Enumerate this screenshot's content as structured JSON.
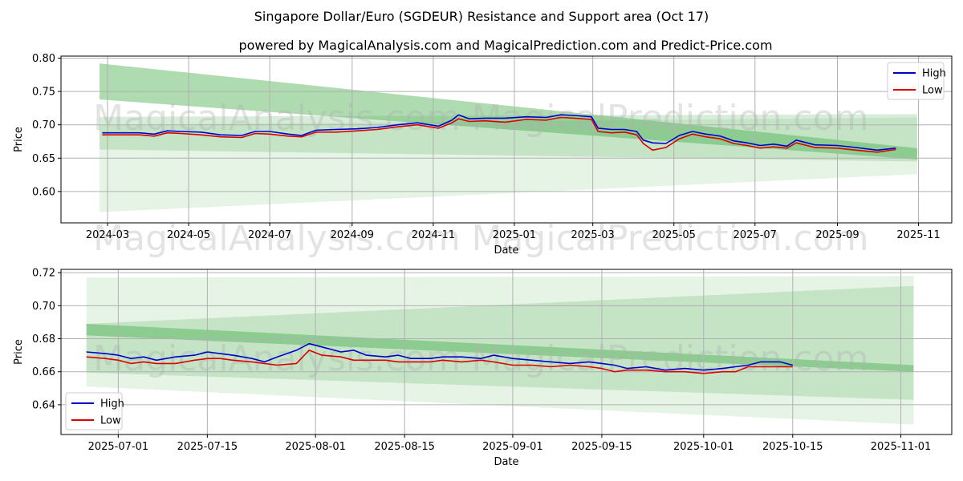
{
  "figure": {
    "title": "Singapore Dollar/Euro (SGDEUR) Resistance and Support area (Oct 17)",
    "subtitle": "powered by MagicalAnalysis.com and MagicalPrediction.com and Predict-Price.com",
    "watermarks": [
      "MagicalAnalysis.com",
      "MagicalPrediction.com"
    ]
  },
  "colors": {
    "high": "#0000cc",
    "low": "#dd0000",
    "band": "#4caf50",
    "grid": "#b0b0b0"
  },
  "chart_data": [
    {
      "type": "line",
      "title": "Singapore Dollar/Euro (SGDEUR) Resistance and Support area (Oct 17)",
      "xlabel": "Date",
      "ylabel": "Price",
      "x_type": "date",
      "xlim": [
        "2024-01-26",
        "2025-11-26"
      ],
      "ylim": [
        0.553,
        0.803
      ],
      "xticks": [
        "2024-03",
        "2024-05",
        "2024-07",
        "2024-09",
        "2024-11",
        "2025-01",
        "2025-03",
        "2025-05",
        "2025-07",
        "2025-09",
        "2025-11"
      ],
      "xtick_dates": [
        "2024-03-01",
        "2024-05-01",
        "2024-07-01",
        "2024-09-01",
        "2024-11-01",
        "2025-01-01",
        "2025-03-01",
        "2025-05-01",
        "2025-07-01",
        "2025-09-01",
        "2025-11-01"
      ],
      "yticks": [
        0.6,
        0.65,
        0.7,
        0.75,
        0.8
      ],
      "ytick_labels": [
        "0.60",
        "0.65",
        "0.70",
        "0.75",
        "0.80"
      ],
      "grid": true,
      "legend": {
        "position": "top-right",
        "entries": [
          "High",
          "Low"
        ]
      },
      "bands": [
        {
          "x": [
            "2024-02-24",
            "2025-10-31"
          ],
          "upper": [
            0.792,
            0.665
          ],
          "lower": [
            0.738,
            0.648
          ],
          "opacity": 0.45
        },
        {
          "x": [
            "2024-02-24",
            "2025-10-31"
          ],
          "upper": [
            0.712,
            0.716
          ],
          "lower": [
            0.663,
            0.645
          ],
          "opacity": 0.22
        },
        {
          "x": [
            "2024-02-24",
            "2025-10-31"
          ],
          "upper": [
            0.7,
            0.711
          ],
          "lower": [
            0.569,
            0.626
          ],
          "opacity": 0.14
        }
      ],
      "series": [
        {
          "name": "High",
          "x": [
            "2024-02-26",
            "2024-03-10",
            "2024-03-25",
            "2024-04-05",
            "2024-04-15",
            "2024-04-25",
            "2024-05-10",
            "2024-05-25",
            "2024-06-10",
            "2024-06-20",
            "2024-07-01",
            "2024-07-15",
            "2024-07-25",
            "2024-08-05",
            "2024-08-20",
            "2024-09-05",
            "2024-09-20",
            "2024-10-05",
            "2024-10-20",
            "2024-11-05",
            "2024-11-15",
            "2024-11-20",
            "2024-11-28",
            "2024-12-10",
            "2024-12-25",
            "2025-01-10",
            "2025-01-25",
            "2025-02-05",
            "2025-02-15",
            "2025-02-28",
            "2025-03-05",
            "2025-03-15",
            "2025-03-25",
            "2025-04-03",
            "2025-04-08",
            "2025-04-15",
            "2025-04-25",
            "2025-05-05",
            "2025-05-15",
            "2025-05-25",
            "2025-06-05",
            "2025-06-15",
            "2025-06-25",
            "2025-07-05",
            "2025-07-15",
            "2025-07-25",
            "2025-08-01",
            "2025-08-15",
            "2025-09-01",
            "2025-09-15",
            "2025-10-01",
            "2025-10-15"
          ],
          "values": [
            0.688,
            0.688,
            0.688,
            0.686,
            0.691,
            0.69,
            0.689,
            0.685,
            0.684,
            0.69,
            0.69,
            0.686,
            0.684,
            0.692,
            0.693,
            0.694,
            0.696,
            0.7,
            0.703,
            0.698,
            0.707,
            0.715,
            0.709,
            0.71,
            0.71,
            0.712,
            0.711,
            0.715,
            0.714,
            0.712,
            0.695,
            0.693,
            0.693,
            0.69,
            0.677,
            0.673,
            0.672,
            0.684,
            0.69,
            0.686,
            0.683,
            0.676,
            0.673,
            0.669,
            0.671,
            0.668,
            0.677,
            0.67,
            0.669,
            0.666,
            0.662,
            0.665
          ]
        },
        {
          "name": "Low",
          "x": [
            "2024-02-26",
            "2024-03-10",
            "2024-03-25",
            "2024-04-05",
            "2024-04-15",
            "2024-04-25",
            "2024-05-10",
            "2024-05-25",
            "2024-06-10",
            "2024-06-20",
            "2024-07-01",
            "2024-07-15",
            "2024-07-25",
            "2024-08-05",
            "2024-08-20",
            "2024-09-05",
            "2024-09-20",
            "2024-10-05",
            "2024-10-20",
            "2024-11-05",
            "2024-11-15",
            "2024-11-20",
            "2024-11-28",
            "2024-12-10",
            "2024-12-25",
            "2025-01-10",
            "2025-01-25",
            "2025-02-05",
            "2025-02-15",
            "2025-02-28",
            "2025-03-05",
            "2025-03-15",
            "2025-03-25",
            "2025-04-03",
            "2025-04-08",
            "2025-04-15",
            "2025-04-25",
            "2025-05-05",
            "2025-05-15",
            "2025-05-25",
            "2025-06-05",
            "2025-06-15",
            "2025-06-25",
            "2025-07-05",
            "2025-07-15",
            "2025-07-25",
            "2025-08-01",
            "2025-08-15",
            "2025-09-01",
            "2025-09-15",
            "2025-10-01",
            "2025-10-15"
          ],
          "values": [
            0.685,
            0.685,
            0.685,
            0.683,
            0.688,
            0.687,
            0.685,
            0.682,
            0.681,
            0.687,
            0.686,
            0.683,
            0.682,
            0.689,
            0.689,
            0.691,
            0.693,
            0.697,
            0.7,
            0.695,
            0.703,
            0.709,
            0.705,
            0.706,
            0.704,
            0.708,
            0.707,
            0.711,
            0.71,
            0.708,
            0.69,
            0.688,
            0.689,
            0.685,
            0.672,
            0.662,
            0.666,
            0.679,
            0.686,
            0.682,
            0.679,
            0.672,
            0.669,
            0.665,
            0.667,
            0.665,
            0.673,
            0.666,
            0.665,
            0.662,
            0.659,
            0.663
          ]
        }
      ]
    },
    {
      "type": "line",
      "title": "",
      "xlabel": "Date",
      "ylabel": "Price",
      "x_type": "date",
      "xlim": [
        "2025-06-22",
        "2025-11-09"
      ],
      "ylim": [
        0.622,
        0.722
      ],
      "xticks": [
        "2025-07-01",
        "2025-07-15",
        "2025-08-01",
        "2025-08-15",
        "2025-09-01",
        "2025-09-15",
        "2025-10-01",
        "2025-10-15",
        "2025-11-01"
      ],
      "xtick_dates": [
        "2025-07-01",
        "2025-07-15",
        "2025-08-01",
        "2025-08-15",
        "2025-09-01",
        "2025-09-15",
        "2025-10-01",
        "2025-10-15",
        "2025-11-01"
      ],
      "yticks": [
        0.64,
        0.66,
        0.68,
        0.7,
        0.72
      ],
      "ytick_labels": [
        "0.64",
        "0.66",
        "0.68",
        "0.70",
        "0.72"
      ],
      "grid": true,
      "legend": {
        "position": "bottom-left",
        "entries": [
          "High",
          "Low"
        ]
      },
      "bands": [
        {
          "x": [
            "2025-06-26",
            "2025-11-03"
          ],
          "upper": [
            0.689,
            0.664
          ],
          "lower": [
            0.682,
            0.66
          ],
          "opacity": 0.45
        },
        {
          "x": [
            "2025-06-26",
            "2025-11-03"
          ],
          "upper": [
            0.689,
            0.712
          ],
          "lower": [
            0.6595,
            0.643
          ],
          "opacity": 0.22
        },
        {
          "x": [
            "2025-06-26",
            "2025-11-03"
          ],
          "upper": [
            0.717,
            0.718
          ],
          "lower": [
            0.651,
            0.628
          ],
          "opacity": 0.14
        }
      ],
      "series": [
        {
          "name": "High",
          "x": [
            "2025-06-26",
            "2025-06-29",
            "2025-07-01",
            "2025-07-03",
            "2025-07-05",
            "2025-07-07",
            "2025-07-10",
            "2025-07-13",
            "2025-07-15",
            "2025-07-17",
            "2025-07-19",
            "2025-07-22",
            "2025-07-24",
            "2025-07-26",
            "2025-07-29",
            "2025-07-31",
            "2025-08-02",
            "2025-08-05",
            "2025-08-07",
            "2025-08-09",
            "2025-08-12",
            "2025-08-14",
            "2025-08-16",
            "2025-08-19",
            "2025-08-21",
            "2025-08-24",
            "2025-08-27",
            "2025-08-29",
            "2025-09-01",
            "2025-09-04",
            "2025-09-07",
            "2025-09-10",
            "2025-09-13",
            "2025-09-15",
            "2025-09-17",
            "2025-09-19",
            "2025-09-22",
            "2025-09-25",
            "2025-09-28",
            "2025-10-01",
            "2025-10-04",
            "2025-10-06",
            "2025-10-08",
            "2025-10-10",
            "2025-10-13",
            "2025-10-15"
          ],
          "values": [
            0.672,
            0.671,
            0.67,
            0.668,
            0.669,
            0.667,
            0.669,
            0.67,
            0.672,
            0.671,
            0.67,
            0.668,
            0.666,
            0.669,
            0.673,
            0.677,
            0.675,
            0.672,
            0.673,
            0.67,
            0.669,
            0.67,
            0.668,
            0.668,
            0.669,
            0.669,
            0.668,
            0.67,
            0.668,
            0.667,
            0.666,
            0.665,
            0.666,
            0.665,
            0.664,
            0.662,
            0.663,
            0.661,
            0.662,
            0.661,
            0.662,
            0.663,
            0.664,
            0.666,
            0.666,
            0.664
          ]
        },
        {
          "name": "Low",
          "x": [
            "2025-06-26",
            "2025-06-29",
            "2025-07-01",
            "2025-07-03",
            "2025-07-05",
            "2025-07-07",
            "2025-07-10",
            "2025-07-13",
            "2025-07-15",
            "2025-07-17",
            "2025-07-19",
            "2025-07-22",
            "2025-07-24",
            "2025-07-26",
            "2025-07-29",
            "2025-07-31",
            "2025-08-02",
            "2025-08-05",
            "2025-08-07",
            "2025-08-09",
            "2025-08-12",
            "2025-08-14",
            "2025-08-16",
            "2025-08-19",
            "2025-08-21",
            "2025-08-24",
            "2025-08-27",
            "2025-08-29",
            "2025-09-01",
            "2025-09-04",
            "2025-09-07",
            "2025-09-10",
            "2025-09-13",
            "2025-09-15",
            "2025-09-17",
            "2025-09-19",
            "2025-09-22",
            "2025-09-25",
            "2025-09-28",
            "2025-10-01",
            "2025-10-04",
            "2025-10-06",
            "2025-10-08",
            "2025-10-10",
            "2025-10-13",
            "2025-10-15"
          ],
          "values": [
            0.669,
            0.668,
            0.667,
            0.665,
            0.666,
            0.665,
            0.665,
            0.667,
            0.668,
            0.668,
            0.667,
            0.666,
            0.665,
            0.664,
            0.665,
            0.673,
            0.67,
            0.669,
            0.667,
            0.667,
            0.667,
            0.666,
            0.666,
            0.666,
            0.667,
            0.666,
            0.667,
            0.666,
            0.664,
            0.664,
            0.663,
            0.664,
            0.663,
            0.662,
            0.66,
            0.661,
            0.661,
            0.66,
            0.66,
            0.659,
            0.66,
            0.66,
            0.663,
            0.663,
            0.663,
            0.663
          ]
        }
      ]
    }
  ]
}
